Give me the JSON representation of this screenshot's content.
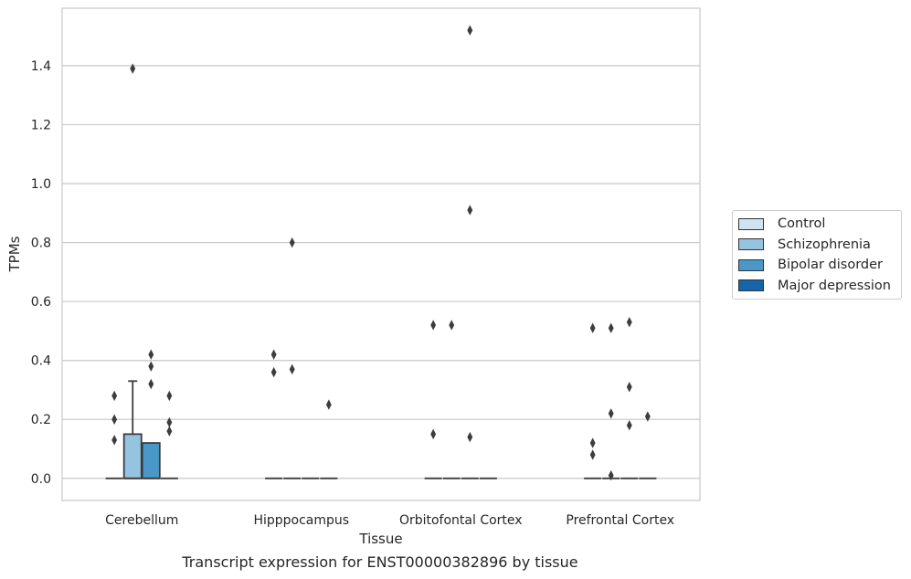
{
  "chart_data": {
    "type": "box",
    "xlabel": "Tissue",
    "ylabel": "TPMs",
    "ylim": [
      -0.075,
      1.595
    ],
    "yticks": [
      0.0,
      0.2,
      0.4,
      0.6,
      0.8,
      1.0,
      1.2,
      1.4
    ],
    "ytick_labels": [
      "0.0",
      "0.2",
      "0.4",
      "0.6",
      "0.8",
      "1.0",
      "1.2",
      "1.4"
    ],
    "grid": true,
    "legend_position": "right",
    "categories": [
      "Cerebellum",
      "Hipppocampus",
      "Orbitofontal Cortex",
      "Prefrontal Cortex"
    ],
    "series": [
      {
        "name": "Control",
        "color": "#d0e1f2"
      },
      {
        "name": "Schizophrenia",
        "color": "#94c4df"
      },
      {
        "name": "Bipolar disorder",
        "color": "#4a98c9"
      },
      {
        "name": "Major depression",
        "color": "#1764ab"
      }
    ],
    "boxes": [
      {
        "category": 0,
        "series": 0,
        "q1": 0,
        "median": 0,
        "q3": 0,
        "whisker_high": 0,
        "outliers": [
          0.13,
          0.2,
          0.28
        ]
      },
      {
        "category": 0,
        "series": 1,
        "q1": 0,
        "median": 0,
        "q3": 0.15,
        "whisker_high": 0.33,
        "outliers": [
          1.39
        ]
      },
      {
        "category": 0,
        "series": 2,
        "q1": 0,
        "median": 0,
        "q3": 0.12,
        "whisker_high": 0.12,
        "outliers": [
          0.32,
          0.38,
          0.42
        ]
      },
      {
        "category": 0,
        "series": 3,
        "q1": 0,
        "median": 0,
        "q3": 0,
        "whisker_high": 0,
        "outliers": [
          0.16,
          0.19,
          0.28
        ]
      },
      {
        "category": 1,
        "series": 0,
        "q1": 0,
        "median": 0,
        "q3": 0,
        "whisker_high": 0,
        "outliers": [
          0.36,
          0.42
        ]
      },
      {
        "category": 1,
        "series": 1,
        "q1": 0,
        "median": 0,
        "q3": 0,
        "whisker_high": 0,
        "outliers": [
          0.37,
          0.8
        ]
      },
      {
        "category": 1,
        "series": 2,
        "q1": 0,
        "median": 0,
        "q3": 0,
        "whisker_high": 0,
        "outliers": []
      },
      {
        "category": 1,
        "series": 3,
        "q1": 0,
        "median": 0,
        "q3": 0,
        "whisker_high": 0,
        "outliers": [
          0.25
        ]
      },
      {
        "category": 2,
        "series": 0,
        "q1": 0,
        "median": 0,
        "q3": 0,
        "whisker_high": 0,
        "outliers": [
          0.15,
          0.52
        ]
      },
      {
        "category": 2,
        "series": 1,
        "q1": 0,
        "median": 0,
        "q3": 0,
        "whisker_high": 0,
        "outliers": [
          0.52
        ]
      },
      {
        "category": 2,
        "series": 2,
        "q1": 0,
        "median": 0,
        "q3": 0,
        "whisker_high": 0,
        "outliers": [
          0.14,
          0.91,
          1.52
        ]
      },
      {
        "category": 2,
        "series": 3,
        "q1": 0,
        "median": 0,
        "q3": 0,
        "whisker_high": 0,
        "outliers": []
      },
      {
        "category": 3,
        "series": 0,
        "q1": 0,
        "median": 0,
        "q3": 0,
        "whisker_high": 0,
        "outliers": [
          0.08,
          0.12,
          0.51
        ]
      },
      {
        "category": 3,
        "series": 1,
        "q1": 0,
        "median": 0,
        "q3": 0,
        "whisker_high": 0,
        "outliers": [
          0.01,
          0.22,
          0.51
        ]
      },
      {
        "category": 3,
        "series": 2,
        "q1": 0,
        "median": 0,
        "q3": 0,
        "whisker_high": 0,
        "outliers": [
          0.18,
          0.31,
          0.53
        ]
      },
      {
        "category": 3,
        "series": 3,
        "q1": 0,
        "median": 0,
        "q3": 0,
        "whisker_high": 0,
        "outliers": [
          0.21
        ]
      }
    ]
  },
  "caption": "Transcript expression for ENST00000382896 by tissue"
}
